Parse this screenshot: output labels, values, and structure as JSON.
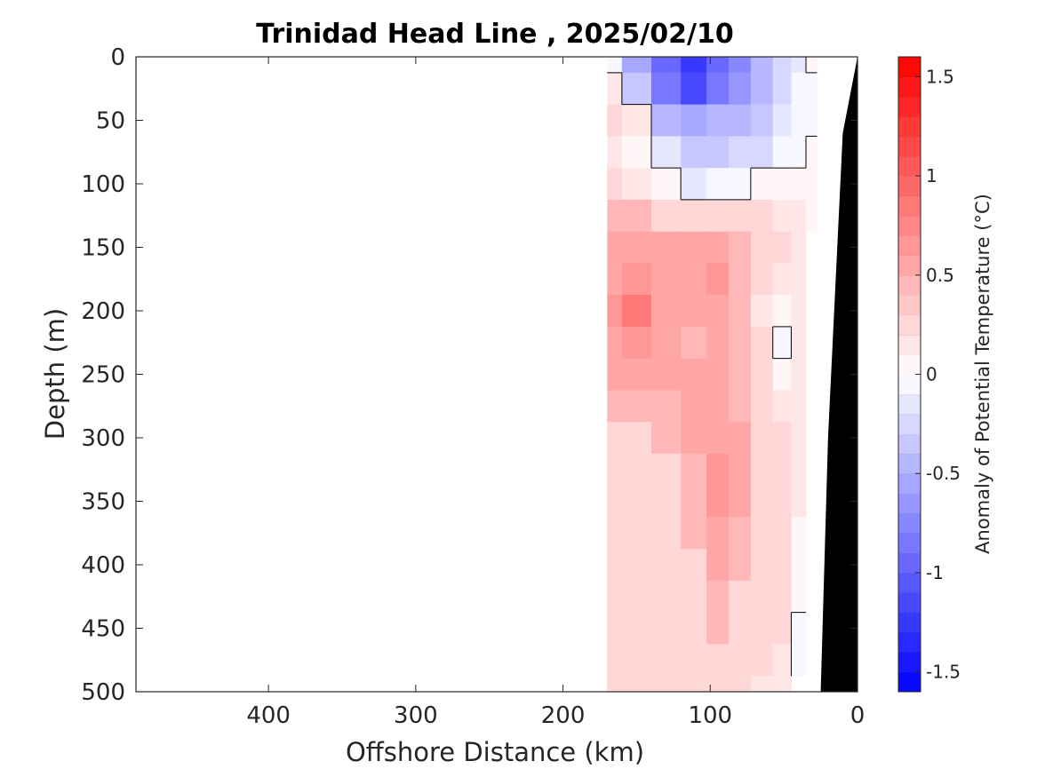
{
  "chart_data": {
    "type": "heatmap",
    "title": "Trinidad Head Line , 2025/02/10",
    "xlabel": "Offshore Distance (km)",
    "ylabel": "Depth (m)",
    "xlim": [
      490,
      0
    ],
    "ylim": [
      0,
      500
    ],
    "x_reversed": true,
    "y_reversed": true,
    "xticks": [
      400,
      300,
      200,
      100,
      0
    ],
    "yticks": [
      0,
      50,
      100,
      150,
      200,
      250,
      300,
      350,
      400,
      450,
      500
    ],
    "colorbar": {
      "label": "Anomaly of Potential Temperature (°C)",
      "range": [
        -1.6,
        1.6
      ],
      "step": 0.1,
      "ticks": [
        1.5,
        1,
        0.5,
        0,
        -0.5,
        -1,
        -1.5
      ],
      "colors": {
        "negative": "#0000ff",
        "zero": "#ffffff",
        "positive": "#ff0000"
      }
    },
    "data_extent_km": [
      170,
      0
    ],
    "bathymetry_color": "#000000",
    "columns_km": [
      170,
      150,
      130,
      110,
      95,
      80,
      65,
      50,
      40,
      30,
      25
    ],
    "rows_m": [
      0,
      25,
      50,
      75,
      100,
      125,
      150,
      175,
      200,
      225,
      250,
      275,
      300,
      325,
      350,
      375,
      400,
      425,
      450,
      475,
      500
    ],
    "values": [
      [
        -0.1,
        -0.6,
        -1.0,
        -1.3,
        -1.0,
        -0.8,
        -0.5,
        -0.3,
        -0.2,
        0.0,
        null
      ],
      [
        0.1,
        -0.4,
        -0.9,
        -1.2,
        -0.9,
        -0.7,
        -0.5,
        -0.3,
        -0.1,
        -0.1,
        null
      ],
      [
        0.3,
        0.1,
        -0.5,
        -0.6,
        -0.5,
        -0.5,
        -0.4,
        -0.2,
        -0.1,
        -0.1,
        null
      ],
      [
        0.1,
        0.0,
        -0.2,
        -0.4,
        -0.4,
        -0.3,
        -0.3,
        -0.1,
        -0.1,
        0.0,
        null
      ],
      [
        0.2,
        0.1,
        0.0,
        -0.2,
        -0.1,
        -0.1,
        0.0,
        0.0,
        0.0,
        0.0,
        null
      ],
      [
        0.4,
        0.4,
        0.3,
        0.3,
        0.3,
        0.2,
        0.2,
        0.1,
        0.1,
        0.0,
        null
      ],
      [
        0.6,
        0.6,
        0.5,
        0.6,
        0.6,
        0.4,
        0.3,
        0.2,
        0.1,
        null,
        null
      ],
      [
        0.6,
        0.7,
        0.5,
        0.6,
        0.7,
        0.4,
        0.2,
        0.1,
        0.1,
        null,
        null
      ],
      [
        0.7,
        0.8,
        0.5,
        0.5,
        0.6,
        0.4,
        0.1,
        0.0,
        0.1,
        null,
        null
      ],
      [
        0.6,
        0.7,
        0.5,
        0.4,
        0.5,
        0.4,
        0.2,
        -0.1,
        0.1,
        null,
        null
      ],
      [
        0.5,
        0.6,
        0.5,
        0.5,
        0.6,
        0.4,
        0.2,
        0.0,
        0.1,
        null,
        null
      ],
      [
        0.4,
        0.4,
        0.4,
        0.5,
        0.6,
        0.4,
        0.3,
        0.1,
        0.1,
        null,
        null
      ],
      [
        0.3,
        0.3,
        0.4,
        0.5,
        0.6,
        0.5,
        0.3,
        0.2,
        0.1,
        null,
        null
      ],
      [
        0.3,
        0.3,
        0.3,
        0.4,
        0.7,
        0.5,
        0.3,
        0.2,
        0.1,
        null,
        null
      ],
      [
        0.2,
        0.3,
        0.3,
        0.4,
        0.7,
        0.5,
        0.3,
        0.2,
        0.1,
        null,
        null
      ],
      [
        0.2,
        0.2,
        0.3,
        0.4,
        0.6,
        0.4,
        0.3,
        0.2,
        0.0,
        null,
        null
      ],
      [
        0.2,
        0.2,
        0.3,
        0.3,
        0.5,
        0.4,
        0.3,
        0.2,
        0.0,
        null,
        null
      ],
      [
        0.2,
        0.3,
        0.3,
        0.3,
        0.4,
        0.3,
        0.3,
        0.2,
        0.0,
        null,
        null
      ],
      [
        0.2,
        0.3,
        0.3,
        0.3,
        0.4,
        0.3,
        0.2,
        0.2,
        -0.1,
        null,
        null
      ],
      [
        0.2,
        0.2,
        0.2,
        0.2,
        0.3,
        0.2,
        0.2,
        0.1,
        -0.1,
        null,
        null
      ],
      [
        0.2,
        0.2,
        0.2,
        0.2,
        0.2,
        0.2,
        0.1,
        0.1,
        null,
        null,
        null
      ]
    ],
    "seafloor_depth_m": [
      [
        0,
        0
      ],
      [
        10,
        60
      ],
      [
        20,
        300
      ],
      [
        25,
        500
      ]
    ]
  }
}
